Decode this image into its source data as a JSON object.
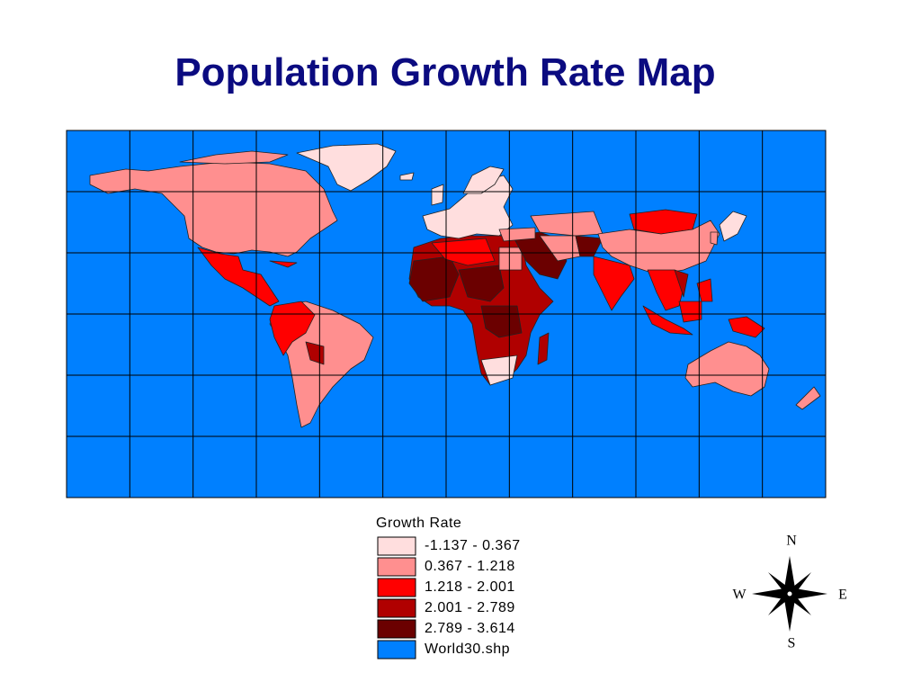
{
  "title": "Population Growth Rate Map",
  "legend": {
    "title": "Growth Rate",
    "items": [
      {
        "label": "-1.137 - 0.367",
        "color": "#ffdede"
      },
      {
        "label": "0.367 - 1.218",
        "color": "#ff8f8f"
      },
      {
        "label": "1.218 - 2.001",
        "color": "#ff0000"
      },
      {
        "label": "2.001 - 2.789",
        "color": "#b00000"
      },
      {
        "label": "2.789 - 3.614",
        "color": "#6b0000"
      },
      {
        "label": "World30.shp",
        "color": "#0080ff"
      }
    ]
  },
  "compass": {
    "north": "N",
    "south": "S",
    "east": "E",
    "west": "W"
  }
}
